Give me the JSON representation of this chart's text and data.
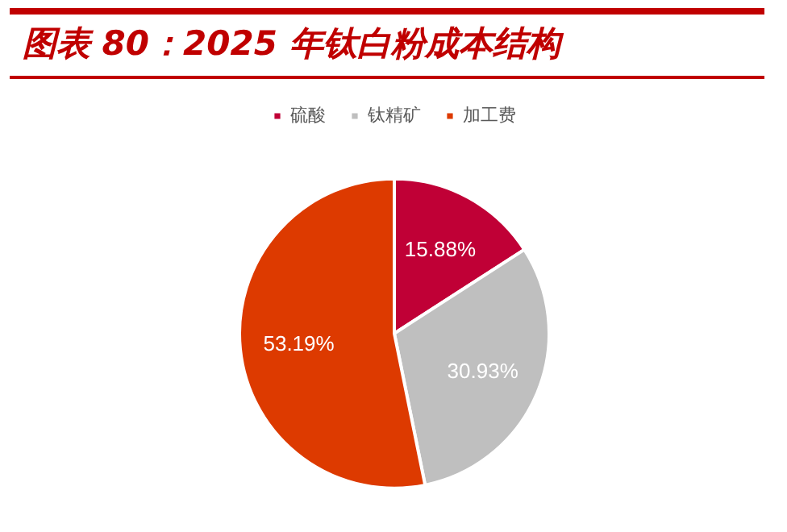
{
  "chart_data": {
    "type": "pie",
    "title": "图表 80：2025 年钛白粉成本结构",
    "categories": [
      "硫酸",
      "钛精矿",
      "加工费"
    ],
    "values": [
      15.88,
      30.93,
      53.19
    ],
    "colors": [
      "#c00036",
      "#bfbfbf",
      "#dd3a00"
    ],
    "value_labels": [
      "15.88%",
      "30.93%",
      "53.19%"
    ],
    "legend": "top"
  }
}
